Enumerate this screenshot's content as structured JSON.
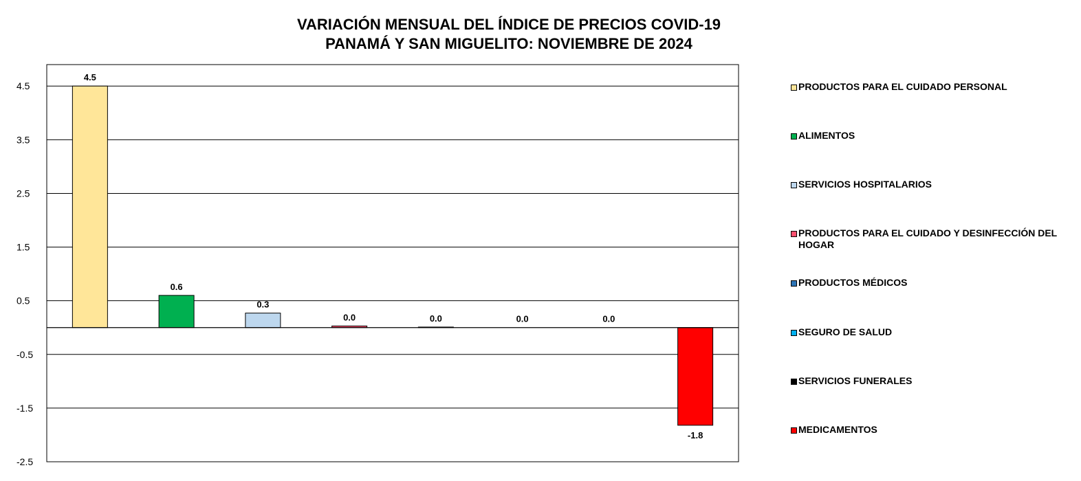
{
  "chart_data": {
    "type": "bar",
    "title": "VARIACIÓN MENSUAL DEL ÍNDICE DE PRECIOS COVID-19\nPANAMÁ Y SAN MIGUELITO: NOVIEMBRE DE 2024",
    "title_lines": [
      "VARIACIÓN MENSUAL DEL ÍNDICE DE PRECIOS COVID-19",
      "PANAMÁ Y SAN MIGUELITO: NOVIEMBRE DE 2024"
    ],
    "xlabel": "",
    "ylabel": "",
    "ylim": [
      -2.5,
      4.9
    ],
    "yticks": [
      -2.5,
      -1.5,
      -0.5,
      0.5,
      1.5,
      2.5,
      3.5,
      4.5
    ],
    "ytick_labels": [
      "-2.5",
      "-1.5",
      "-0.5",
      "0.5",
      "1.5",
      "2.5",
      "3.5",
      "4.5"
    ],
    "grid": true,
    "legend_position": "right",
    "categories": [
      "PRODUCTOS PARA EL CUIDADO PERSONAL",
      "ALIMENTOS",
      "SERVICIOS HOSPITALARIOS",
      "PRODUCTOS PARA EL CUIDADO Y DESINFECCIÓN DEL HOGAR",
      "PRODUCTOS MÉDICOS",
      "SEGURO DE SALUD",
      "SERVICIOS FUNERALES",
      "MEDICAMENTOS"
    ],
    "values": [
      4.5,
      0.6,
      0.27,
      0.03,
      0.01,
      0.0,
      0.0,
      -1.82
    ],
    "data_labels": [
      "4.5",
      "0.6",
      "0.3",
      "0.0",
      "0.0",
      "0.0",
      "0.0",
      "-1.8"
    ],
    "colors": [
      "#FFE699",
      "#00B050",
      "#BDD7EE",
      "#FF4F6E",
      "#2E75B6",
      "#00B0F0",
      "#000000",
      "#FF0000"
    ]
  }
}
